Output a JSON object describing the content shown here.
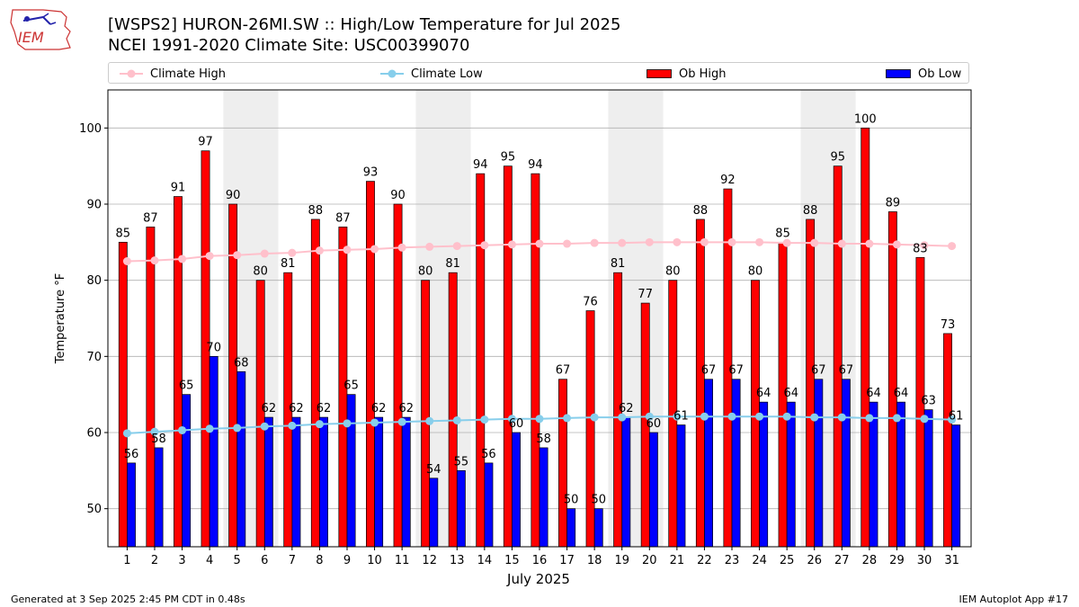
{
  "logo": {
    "text": "IEM"
  },
  "title_line1": "[WSPS2] HURON-26MI.SW :: High/Low Temperature for Jul 2025",
  "title_line2": "NCEI 1991-2020 Climate Site: USC00399070",
  "footer_left": "Generated at 3 Sep 2025 2:45 PM CDT in 0.48s",
  "footer_right": "IEM Autoplot App #17",
  "colors": {
    "ob_high": "#ff0000",
    "ob_low": "#0000ff",
    "climate_high": "#ffc0cb",
    "climate_low": "#87ceeb",
    "weekend_band": "#eeeeee",
    "grid": "#b0b0b0"
  },
  "chart_data": {
    "type": "bar",
    "xlabel": "July 2025",
    "ylabel": "Temperature °F",
    "ylim": [
      45,
      105
    ],
    "yticks": [
      50,
      60,
      70,
      80,
      90,
      100
    ],
    "grid": true,
    "legend_position": "top",
    "categories": [
      1,
      2,
      3,
      4,
      5,
      6,
      7,
      8,
      9,
      10,
      11,
      12,
      13,
      14,
      15,
      16,
      17,
      18,
      19,
      20,
      21,
      22,
      23,
      24,
      25,
      26,
      27,
      28,
      29,
      30,
      31
    ],
    "shaded_days": [
      5,
      6,
      12,
      13,
      19,
      20,
      26,
      27
    ],
    "series": [
      {
        "name": "Climate High",
        "kind": "line",
        "values": [
          82.5,
          82.6,
          82.8,
          83.2,
          83.3,
          83.5,
          83.6,
          83.9,
          84.0,
          84.1,
          84.3,
          84.4,
          84.5,
          84.6,
          84.7,
          84.8,
          84.8,
          84.9,
          84.9,
          85.0,
          85.0,
          85.0,
          85.0,
          85.0,
          84.9,
          84.9,
          84.8,
          84.8,
          84.7,
          84.6,
          84.5
        ]
      },
      {
        "name": "Climate Low",
        "kind": "line",
        "values": [
          59.9,
          60.1,
          60.3,
          60.5,
          60.6,
          60.8,
          60.9,
          61.1,
          61.2,
          61.3,
          61.4,
          61.5,
          61.6,
          61.7,
          61.8,
          61.8,
          61.9,
          62.0,
          62.0,
          62.1,
          62.1,
          62.1,
          62.1,
          62.1,
          62.1,
          62.0,
          62.0,
          61.9,
          61.9,
          61.8,
          61.7
        ]
      },
      {
        "name": "Ob High",
        "kind": "bar",
        "values": [
          85,
          87,
          91,
          97,
          90,
          80,
          81,
          88,
          87,
          93,
          90,
          80,
          81,
          94,
          95,
          94,
          67,
          76,
          81,
          77,
          80,
          88,
          92,
          80,
          85,
          88,
          95,
          100,
          89,
          83,
          73
        ]
      },
      {
        "name": "Ob Low",
        "kind": "bar",
        "values": [
          56,
          58,
          65,
          70,
          68,
          62,
          62,
          62,
          65,
          62,
          62,
          54,
          55,
          56,
          60,
          58,
          50,
          50,
          62,
          60,
          61,
          67,
          67,
          64,
          64,
          67,
          67,
          64,
          64,
          63,
          61
        ]
      }
    ]
  }
}
